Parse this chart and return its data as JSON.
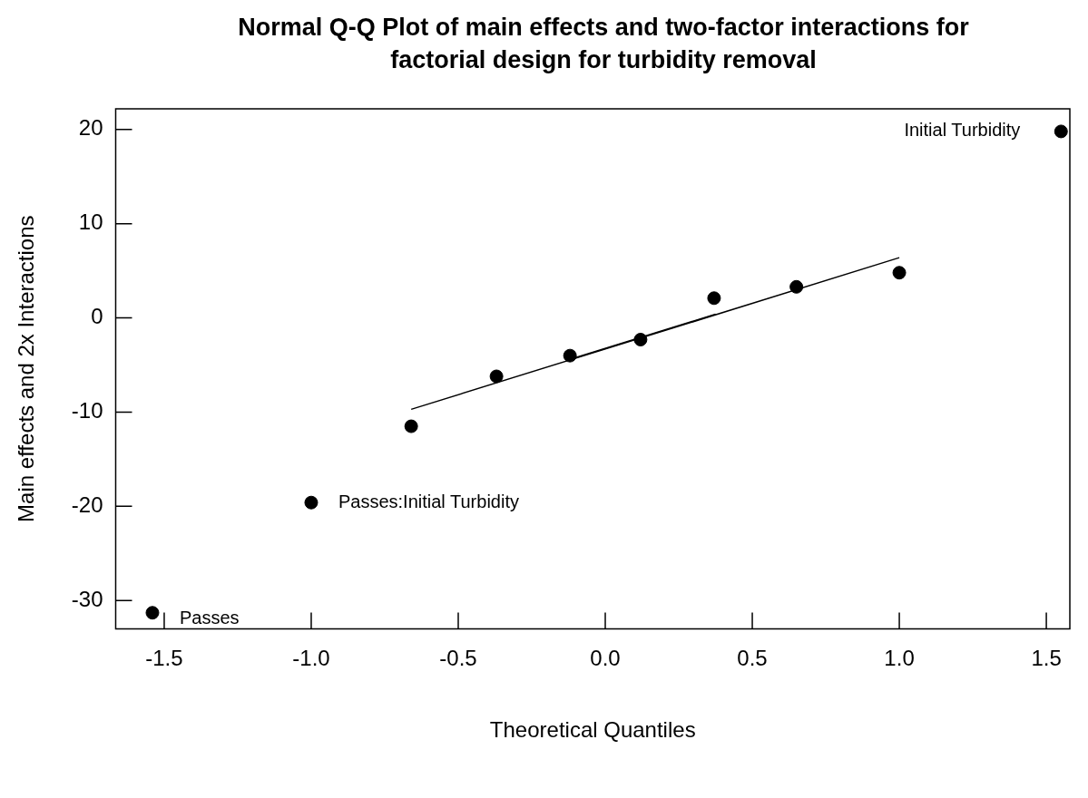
{
  "chart_data": {
    "type": "scatter",
    "title": "Normal Q-Q Plot of main effects and two-factor interactions for factorial design for turbidity removal",
    "xlabel": "Theoretical Quantiles",
    "ylabel": "Main effects and 2x Interactions",
    "xlim": [
      -1.665,
      1.58
    ],
    "xticks": [
      {
        "value": -1.5,
        "label": "-1.5"
      },
      {
        "value": -1,
        "label": "-1.0"
      },
      {
        "value": -0.5,
        "label": "-0.5"
      },
      {
        "value": 0,
        "label": "0.0"
      },
      {
        "value": 0.5,
        "label": "0.5"
      },
      {
        "value": 1,
        "label": "1.0"
      },
      {
        "value": 1.5,
        "label": "1.5"
      }
    ],
    "ylim": [
      -33,
      22.2
    ],
    "yticks": [
      -30,
      -20,
      -10,
      0,
      10,
      20
    ],
    "series": [
      {
        "color": "#000000",
        "marker": "circle",
        "x": [
          -1.54,
          -1.0,
          -0.66,
          -0.37,
          -0.12,
          0.12,
          0.37,
          0.65,
          1.0,
          1.55
        ],
        "values": [
          -31.3,
          -19.6,
          -11.5,
          -6.2,
          -4.0,
          -2.3,
          2.1,
          3.3,
          4.8,
          19.8
        ]
      },
      {
        "type": "line",
        "color": "#000000",
        "marker": "none",
        "x": [
          -0.66,
          1.0
        ],
        "values": [
          -9.7,
          6.4
        ]
      },
      {
        "type": "line",
        "color": "#000000",
        "marker": "none",
        "x": [
          -0.12,
          0.375
        ],
        "values": [
          -4.4,
          0.4
        ]
      }
    ],
    "annotations": [
      {
        "text": "Passes",
        "x": -1.54,
        "y": -31.3
      },
      {
        "text": "Passes:Initial Turbidity",
        "x": -1.0,
        "y": -19.6
      },
      {
        "text": "Initial Turbidity",
        "x": 1.55,
        "y": 19.8
      }
    ]
  }
}
